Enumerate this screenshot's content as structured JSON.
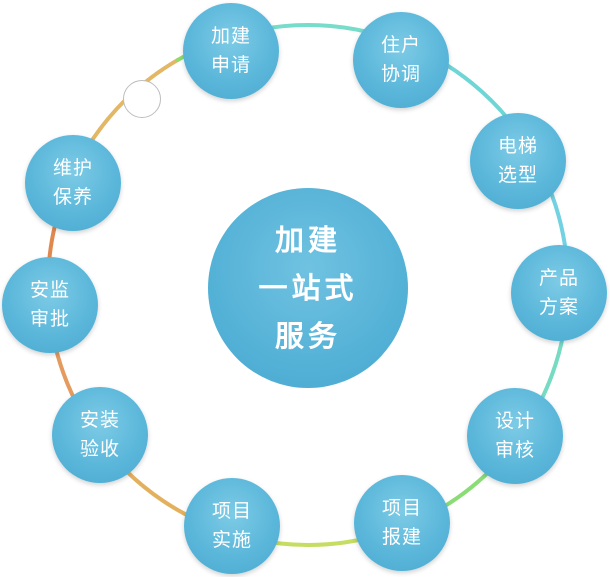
{
  "center": {
    "line1": "加建",
    "line2": "一站式",
    "line3": "服务"
  },
  "steps": [
    {
      "line1": "加建",
      "line2": "申请"
    },
    {
      "line1": "住户",
      "line2": "协调"
    },
    {
      "line1": "电梯",
      "line2": "选型"
    },
    {
      "line1": "产品",
      "line2": "方案"
    },
    {
      "line1": "设计",
      "line2": "审核"
    },
    {
      "line1": "项目",
      "line2": "报建"
    },
    {
      "line1": "项目",
      "line2": "实施"
    },
    {
      "line1": "安装",
      "line2": "验收"
    },
    {
      "line1": "安监",
      "line2": "审批"
    },
    {
      "line1": "维护",
      "line2": "保养"
    }
  ],
  "colors": {
    "node": "#5bb7da",
    "arc_segments": [
      "#77dcc9",
      "#6fd6d6",
      "#72d2e2",
      "#76dbc2",
      "#89dc76",
      "#c5dd62",
      "#e3b15e",
      "#e59a5e",
      "#e0894f",
      "#e2b765",
      "#8edb6e"
    ]
  }
}
